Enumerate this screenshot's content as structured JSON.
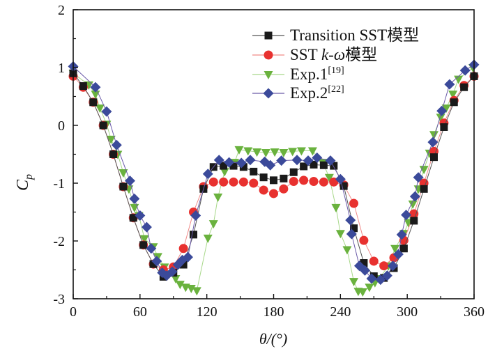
{
  "chart_data": {
    "type": "line",
    "xlabel": "θ/(°)",
    "ylabel_main": "C",
    "ylabel_sub": "p",
    "xlim": [
      0,
      360
    ],
    "ylim": [
      -3,
      2
    ],
    "xticks": [
      0,
      60,
      120,
      180,
      240,
      300,
      360
    ],
    "yticks": [
      -3,
      -2,
      -1,
      0,
      1,
      2
    ],
    "grid": false,
    "legend_placement": "top-right",
    "series": [
      {
        "name": "Transition SST模型",
        "marker": "square",
        "color": "#1a1a1a",
        "line_color": "#555555",
        "x": [
          0,
          9,
          18,
          27,
          36,
          45,
          54,
          63,
          72,
          81,
          90,
          99,
          108,
          117,
          126,
          135,
          144,
          153,
          162,
          171,
          180,
          189,
          198,
          207,
          216,
          225,
          234,
          243,
          252,
          261,
          270,
          279,
          288,
          297,
          306,
          315,
          324,
          333,
          342,
          351,
          360
        ],
        "y": [
          0.9,
          0.68,
          0.4,
          0.0,
          -0.5,
          -1.06,
          -1.6,
          -2.07,
          -2.4,
          -2.62,
          -2.55,
          -2.41,
          -1.89,
          -1.1,
          -0.72,
          -0.7,
          -0.7,
          -0.72,
          -0.8,
          -0.9,
          -0.95,
          -0.92,
          -0.81,
          -0.71,
          -0.68,
          -0.69,
          -0.7,
          -1.05,
          -1.78,
          -2.38,
          -2.61,
          -2.64,
          -2.47,
          -2.13,
          -1.65,
          -1.1,
          -0.55,
          -0.03,
          0.4,
          0.66,
          0.85
        ]
      },
      {
        "name": "SST k-ω模型",
        "name_plain": "SST ",
        "name_italic": "k-ω",
        "name_suffix": "模型",
        "marker": "circle",
        "color": "#e8312f",
        "line_color": "#f08a88",
        "x": [
          0,
          9,
          18,
          27,
          36,
          45,
          54,
          63,
          72,
          81,
          90,
          99,
          108,
          117,
          126,
          135,
          144,
          153,
          162,
          171,
          180,
          189,
          198,
          207,
          216,
          225,
          234,
          243,
          252,
          261,
          270,
          279,
          288,
          297,
          306,
          315,
          324,
          333,
          342,
          351,
          360
        ],
        "y": [
          0.85,
          0.66,
          0.4,
          0.0,
          -0.5,
          -1.06,
          -1.6,
          -2.07,
          -2.4,
          -2.5,
          -2.45,
          -2.13,
          -1.5,
          -1.06,
          -0.98,
          -0.98,
          -0.98,
          -0.98,
          -1.0,
          -1.12,
          -1.18,
          -1.1,
          -0.97,
          -0.95,
          -0.97,
          -0.98,
          -0.98,
          -1.03,
          -1.35,
          -1.99,
          -2.35,
          -2.43,
          -2.29,
          -1.99,
          -1.53,
          -1.0,
          -0.45,
          0.04,
          0.43,
          0.69,
          0.85
        ]
      },
      {
        "name": "Exp.1",
        "ref": "[19]",
        "marker": "triangle-down",
        "color": "#6ab23e",
        "line_color": "#a8d88a",
        "x": [
          0,
          14,
          20,
          24,
          30,
          34,
          40,
          45,
          50,
          55,
          59,
          64,
          72,
          76,
          82,
          92,
          96,
          101,
          106,
          111,
          121,
          126,
          130,
          136,
          145,
          149,
          157,
          165,
          173,
          181,
          189,
          197,
          205,
          215,
          224,
          230,
          236,
          240,
          246,
          252,
          256,
          260,
          266,
          271,
          275,
          283,
          289,
          297,
          301,
          305,
          310,
          315,
          320,
          324,
          330,
          335,
          341,
          346,
          359
        ],
        "y": [
          0.9,
          0.7,
          0.54,
          0.3,
          0.02,
          -0.24,
          -0.5,
          -0.82,
          -1.1,
          -1.42,
          -1.56,
          -1.96,
          -2.1,
          -2.27,
          -2.45,
          -2.65,
          -2.75,
          -2.8,
          -2.82,
          -2.86,
          -1.95,
          -1.7,
          -1.24,
          -0.8,
          -0.64,
          -0.42,
          -0.44,
          -0.46,
          -0.47,
          -0.46,
          -0.47,
          -0.45,
          -0.44,
          -0.44,
          -0.64,
          -0.9,
          -1.42,
          -1.87,
          -2.15,
          -2.7,
          -2.87,
          -2.88,
          -2.8,
          -2.72,
          -2.65,
          -2.43,
          -2.13,
          -1.87,
          -1.68,
          -1.36,
          -1.1,
          -0.76,
          -0.48,
          -0.16,
          0.14,
          0.3,
          0.54,
          0.8,
          1.0
        ]
      },
      {
        "name": "Exp.2",
        "ref": "[22]",
        "marker": "diamond",
        "color": "#3b4a9a",
        "line_color": "#6a5aa8",
        "x": [
          0,
          20,
          30,
          39,
          51,
          55,
          60,
          66,
          70,
          75,
          80,
          84,
          89,
          94,
          98,
          103,
          110,
          121,
          131,
          140,
          151,
          159,
          172,
          177,
          187,
          201,
          211,
          219,
          231,
          240,
          249,
          250,
          257,
          262,
          268,
          276,
          282,
          287,
          292,
          295,
          299,
          307,
          310,
          323,
          331,
          338,
          352,
          360
        ],
        "y": [
          1.02,
          0.66,
          0.24,
          -0.34,
          -0.96,
          -1.27,
          -1.56,
          -1.76,
          -2.13,
          -2.35,
          -2.55,
          -2.6,
          -2.53,
          -2.41,
          -2.33,
          -2.28,
          -1.56,
          -0.84,
          -0.6,
          -0.64,
          -0.65,
          -0.6,
          -0.63,
          -0.69,
          -0.61,
          -0.6,
          -0.61,
          -0.56,
          -0.61,
          -0.93,
          -1.64,
          -1.88,
          -2.43,
          -2.51,
          -2.65,
          -2.67,
          -2.6,
          -2.43,
          -2.23,
          -1.89,
          -1.55,
          -1.23,
          -0.9,
          -0.29,
          0.25,
          0.71,
          0.95,
          1.05
        ]
      }
    ]
  }
}
